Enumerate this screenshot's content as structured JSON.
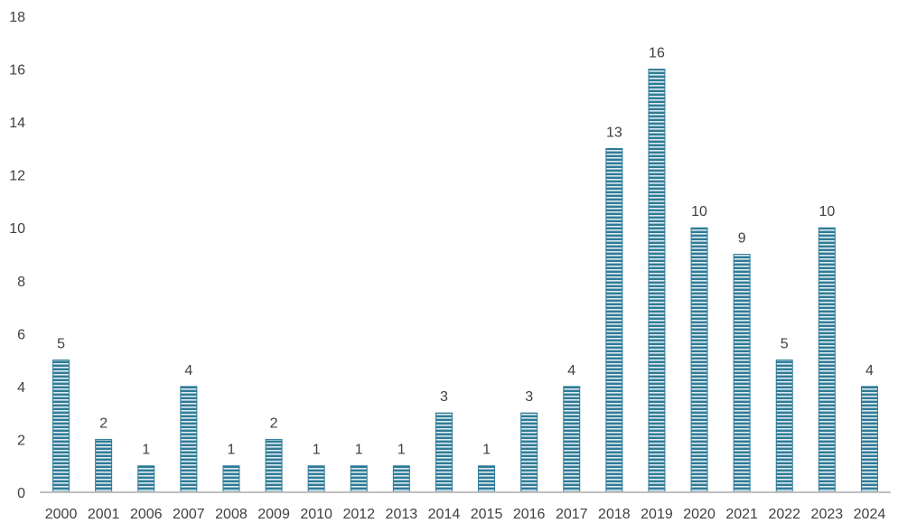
{
  "chart_data": {
    "type": "bar",
    "title": "",
    "xlabel": "",
    "ylabel": "",
    "categories": [
      "2000",
      "2001",
      "2006",
      "2007",
      "2008",
      "2009",
      "2010",
      "2012",
      "2013",
      "2014",
      "2015",
      "2016",
      "2017",
      "2018",
      "2019",
      "2020",
      "2021",
      "2022",
      "2023",
      "2024"
    ],
    "values": [
      5,
      2,
      1,
      4,
      1,
      2,
      1,
      1,
      1,
      3,
      1,
      3,
      4,
      13,
      16,
      10,
      9,
      5,
      10,
      4
    ],
    "ylim": [
      0,
      18
    ],
    "yticks": [
      0,
      2,
      4,
      6,
      8,
      10,
      12,
      14,
      16,
      18
    ],
    "grid": false,
    "legend": "none",
    "data_labels": true,
    "bar_color": "#2E7B97",
    "bar_stripe_color": "#ffffff",
    "axis_color": "#BFBFBF",
    "text_color": "#404040"
  }
}
